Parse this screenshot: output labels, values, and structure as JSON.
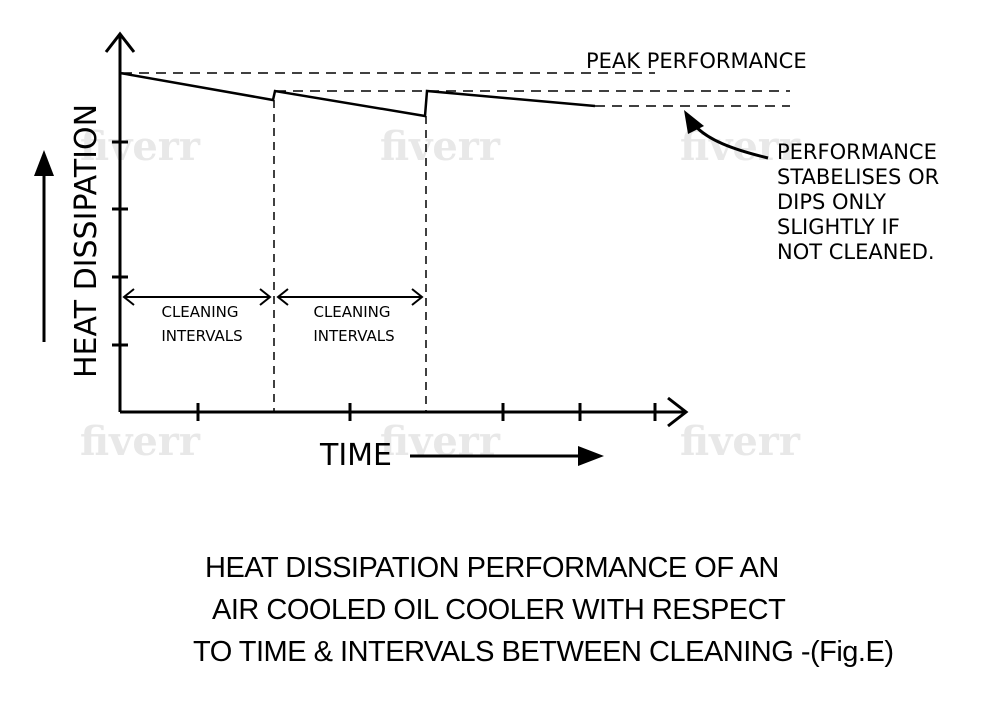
{
  "watermark": "fiverr",
  "diagram": {
    "peak_label": "PEAK PERFORMANCE",
    "y_axis_label": "HEAT DISSIPATION",
    "x_axis_label": "TIME",
    "intervals": [
      {
        "line1": "CLEANING",
        "line2": "INTERVALS"
      },
      {
        "line1": "CLEANING",
        "line2": "INTERVALS"
      }
    ],
    "annotation": [
      "PERFORMANCE",
      "STABELISES OR",
      "DIPS  ONLY",
      "SLIGHTLY IF",
      "NOT CLEANED."
    ]
  },
  "caption": {
    "line1": "HEAT DISSIPATION PERFORMANCE OF AN",
    "line2": "AIR COOLED OIL COOLER WITH RESPECT",
    "line3": "TO TIME & INTERVALS BETWEEN CLEANING -(Fig.E)"
  }
}
